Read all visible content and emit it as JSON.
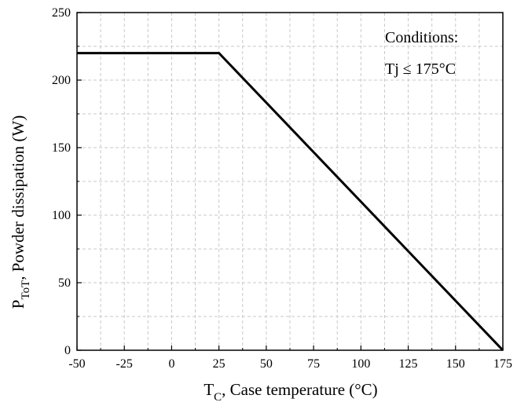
{
  "chart_data": {
    "type": "line",
    "xlabel": {
      "main": "T",
      "sub": "C",
      "rest": ", Case temperature (°C)"
    },
    "ylabel": {
      "main": "P",
      "sub": "ToT",
      "rest": ", Powder dissipation (W)"
    },
    "xlim": [
      -50,
      175
    ],
    "ylim": [
      0,
      250
    ],
    "xticks": [
      -50,
      -25,
      0,
      25,
      50,
      75,
      100,
      125,
      150,
      175
    ],
    "yticks": [
      0,
      50,
      100,
      150,
      200,
      250
    ],
    "grid": true,
    "series": [
      {
        "x": [
          -50,
          25,
          175
        ],
        "y": [
          220,
          220,
          0
        ],
        "color": "#000000"
      }
    ],
    "annotations": [
      "Conditions:",
      "Tj ≤ 175°C"
    ]
  }
}
